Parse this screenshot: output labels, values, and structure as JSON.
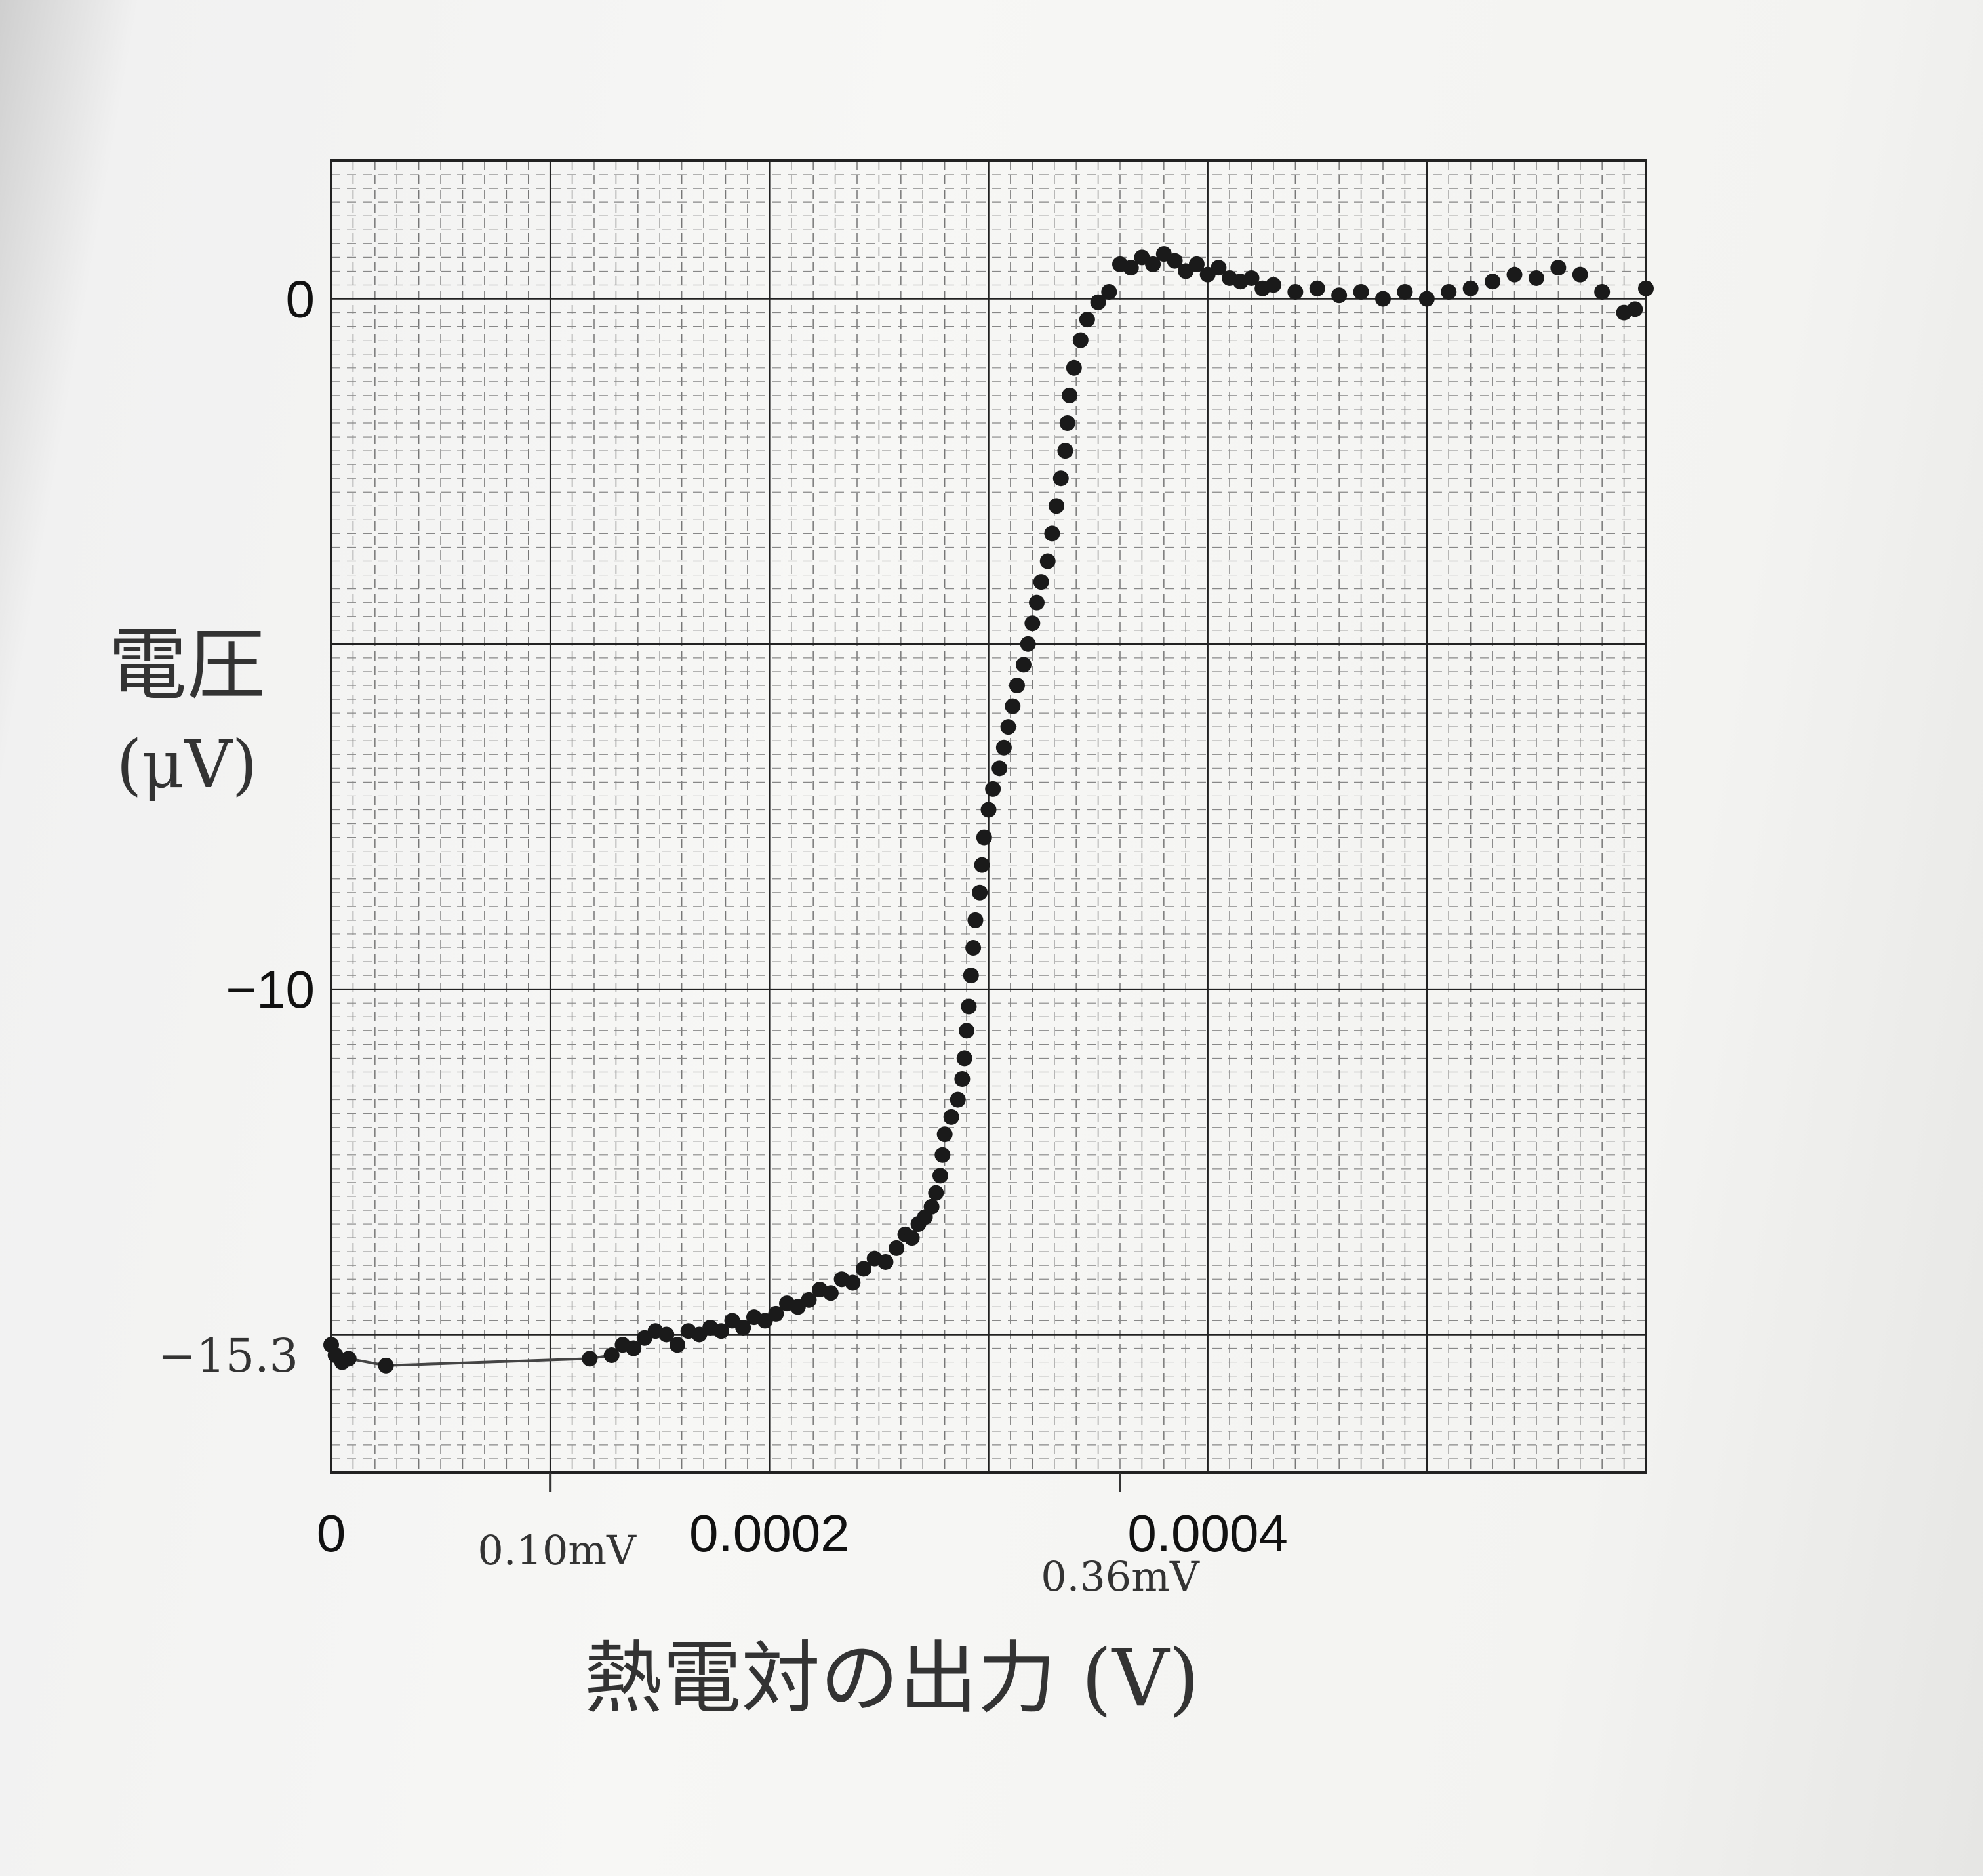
{
  "chart_data": {
    "type": "scatter",
    "title": "",
    "xlabel": "熱電対の出力 (V)",
    "ylabel": "電圧",
    "ylabel_unit": "(μV)",
    "x_ticks": [
      {
        "value": 0,
        "label": "0"
      },
      {
        "value": 0.0002,
        "label": "0.0002"
      },
      {
        "value": 0.0004,
        "label": "0.0004"
      }
    ],
    "y_ticks": [
      {
        "value": 0,
        "label": "0"
      },
      {
        "value": -10,
        "label": "−10"
      }
    ],
    "xlim": [
      0,
      0.0006
    ],
    "ylim": [
      -17,
      2
    ],
    "grid": true,
    "annotations": [
      {
        "x": 0.0001,
        "label": "0.10mV"
      },
      {
        "x": 0.00036,
        "label": "0.36mV"
      },
      {
        "y": -15.3,
        "label": "−15.3"
      }
    ],
    "series": [
      {
        "color": "#1a1a1a",
        "points": [
          [
            0.0,
            -15.15
          ],
          [
            2e-06,
            -15.3
          ],
          [
            5e-06,
            -15.4
          ],
          [
            8e-06,
            -15.35
          ],
          [
            2.5e-05,
            -15.45
          ],
          [
            0.000118,
            -15.35
          ],
          [
            0.000128,
            -15.3
          ],
          [
            0.000133,
            -15.15
          ],
          [
            0.000138,
            -15.2
          ],
          [
            0.000143,
            -15.05
          ],
          [
            0.000148,
            -14.95
          ],
          [
            0.000153,
            -15.0
          ],
          [
            0.000158,
            -15.15
          ],
          [
            0.000163,
            -14.95
          ],
          [
            0.000168,
            -15.0
          ],
          [
            0.000173,
            -14.9
          ],
          [
            0.000178,
            -14.95
          ],
          [
            0.000183,
            -14.8
          ],
          [
            0.000188,
            -14.9
          ],
          [
            0.000193,
            -14.75
          ],
          [
            0.000198,
            -14.8
          ],
          [
            0.000203,
            -14.7
          ],
          [
            0.000208,
            -14.55
          ],
          [
            0.000213,
            -14.6
          ],
          [
            0.000218,
            -14.5
          ],
          [
            0.000223,
            -14.35
          ],
          [
            0.000228,
            -14.4
          ],
          [
            0.000233,
            -14.2
          ],
          [
            0.000238,
            -14.25
          ],
          [
            0.000243,
            -14.05
          ],
          [
            0.000248,
            -13.9
          ],
          [
            0.000253,
            -13.95
          ],
          [
            0.000258,
            -13.75
          ],
          [
            0.000262,
            -13.55
          ],
          [
            0.000265,
            -13.6
          ],
          [
            0.000268,
            -13.4
          ],
          [
            0.000271,
            -13.3
          ],
          [
            0.000274,
            -13.15
          ],
          [
            0.000276,
            -12.95
          ],
          [
            0.000278,
            -12.7
          ],
          [
            0.000279,
            -12.4
          ],
          [
            0.00028,
            -12.1
          ],
          [
            0.000283,
            -11.85
          ],
          [
            0.000286,
            -11.6
          ],
          [
            0.000288,
            -11.3
          ],
          [
            0.000289,
            -11.0
          ],
          [
            0.00029,
            -10.6
          ],
          [
            0.000291,
            -10.25
          ],
          [
            0.000292,
            -9.8
          ],
          [
            0.000293,
            -9.4
          ],
          [
            0.000294,
            -9.0
          ],
          [
            0.000296,
            -8.6
          ],
          [
            0.000297,
            -8.2
          ],
          [
            0.000298,
            -7.8
          ],
          [
            0.0003,
            -7.4
          ],
          [
            0.000302,
            -7.1
          ],
          [
            0.000305,
            -6.8
          ],
          [
            0.000307,
            -6.5
          ],
          [
            0.000309,
            -6.2
          ],
          [
            0.000311,
            -5.9
          ],
          [
            0.000313,
            -5.6
          ],
          [
            0.000316,
            -5.3
          ],
          [
            0.000318,
            -5.0
          ],
          [
            0.00032,
            -4.7
          ],
          [
            0.000322,
            -4.4
          ],
          [
            0.000324,
            -4.1
          ],
          [
            0.000327,
            -3.8
          ],
          [
            0.000329,
            -3.4
          ],
          [
            0.000331,
            -3.0
          ],
          [
            0.000333,
            -2.6
          ],
          [
            0.000335,
            -2.2
          ],
          [
            0.000336,
            -1.8
          ],
          [
            0.000337,
            -1.4
          ],
          [
            0.000339,
            -1.0
          ],
          [
            0.000342,
            -0.6
          ],
          [
            0.000345,
            -0.3
          ],
          [
            0.00035,
            -0.05
          ],
          [
            0.000355,
            0.1
          ],
          [
            0.00036,
            0.5
          ],
          [
            0.000365,
            0.45
          ],
          [
            0.00037,
            0.6
          ],
          [
            0.000375,
            0.5
          ],
          [
            0.00038,
            0.65
          ],
          [
            0.000385,
            0.55
          ],
          [
            0.00039,
            0.4
          ],
          [
            0.000395,
            0.5
          ],
          [
            0.0004,
            0.35
          ],
          [
            0.000405,
            0.45
          ],
          [
            0.00041,
            0.3
          ],
          [
            0.000415,
            0.25
          ],
          [
            0.00042,
            0.3
          ],
          [
            0.000425,
            0.15
          ],
          [
            0.00043,
            0.2
          ],
          [
            0.00044,
            0.1
          ],
          [
            0.00045,
            0.15
          ],
          [
            0.00046,
            0.05
          ],
          [
            0.00047,
            0.1
          ],
          [
            0.00048,
            0.0
          ],
          [
            0.00049,
            0.1
          ],
          [
            0.0005,
            0.0
          ],
          [
            0.00051,
            0.1
          ],
          [
            0.00052,
            0.15
          ],
          [
            0.00053,
            0.25
          ],
          [
            0.00054,
            0.35
          ],
          [
            0.00055,
            0.3
          ],
          [
            0.00056,
            0.45
          ],
          [
            0.00057,
            0.35
          ],
          [
            0.00058,
            0.1
          ],
          [
            0.00059,
            -0.2
          ],
          [
            0.000595,
            -0.15
          ],
          [
            0.0006,
            0.15
          ]
        ]
      }
    ]
  }
}
